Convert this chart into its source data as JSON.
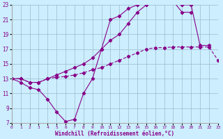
{
  "xlabel": "Windchill (Refroidissement éolien,°C)",
  "background_color": "#cceeff",
  "line_color": "#880088",
  "grid_color": "#99bbcc",
  "xmin": 0,
  "xmax": 23,
  "ymin": 7,
  "ymax": 23,
  "yticks": [
    7,
    9,
    11,
    13,
    15,
    17,
    19,
    21,
    23
  ],
  "xticks": [
    0,
    1,
    2,
    3,
    4,
    5,
    6,
    7,
    8,
    9,
    10,
    11,
    12,
    13,
    14,
    15,
    16,
    17,
    18,
    19,
    20,
    21,
    22,
    23
  ],
  "line1_x": [
    0,
    1,
    2,
    3,
    4,
    5,
    6,
    7,
    8,
    9,
    10,
    11,
    12,
    13,
    14,
    15,
    16,
    17,
    18,
    19,
    20,
    21,
    22
  ],
  "line1_y": [
    13,
    12.5,
    11.8,
    11.5,
    10.2,
    8.5,
    7.2,
    7.5,
    11,
    13,
    17,
    21,
    21.5,
    22.5,
    23,
    23.5,
    23.5,
    23.5,
    23.5,
    23,
    23,
    17.5,
    17.5
  ],
  "line2_x": [
    0,
    1,
    2,
    3,
    4,
    5,
    6,
    7,
    8,
    9,
    10,
    11,
    12,
    13,
    14,
    15,
    16,
    17,
    18,
    19,
    20
  ],
  "line2_y": [
    13,
    13,
    12.5,
    12.5,
    13,
    13.5,
    14,
    14.5,
    15,
    15.8,
    17,
    18.2,
    19,
    20.5,
    22,
    23,
    23.5,
    23.5,
    23.5,
    22,
    22
  ],
  "line3_x": [
    0,
    1,
    2,
    3,
    4,
    5,
    6,
    7,
    8,
    9,
    10,
    11,
    12,
    13,
    14,
    15,
    16,
    17,
    18,
    19,
    20,
    21,
    22,
    23
  ],
  "line3_y": [
    13,
    13,
    12.5,
    12.5,
    13,
    13.2,
    13.3,
    13.5,
    13.8,
    14.2,
    14.5,
    15,
    15.5,
    16,
    16.5,
    17,
    17.2,
    17.2,
    17.3,
    17.3,
    17.3,
    17.3,
    17.3,
    15.5
  ]
}
